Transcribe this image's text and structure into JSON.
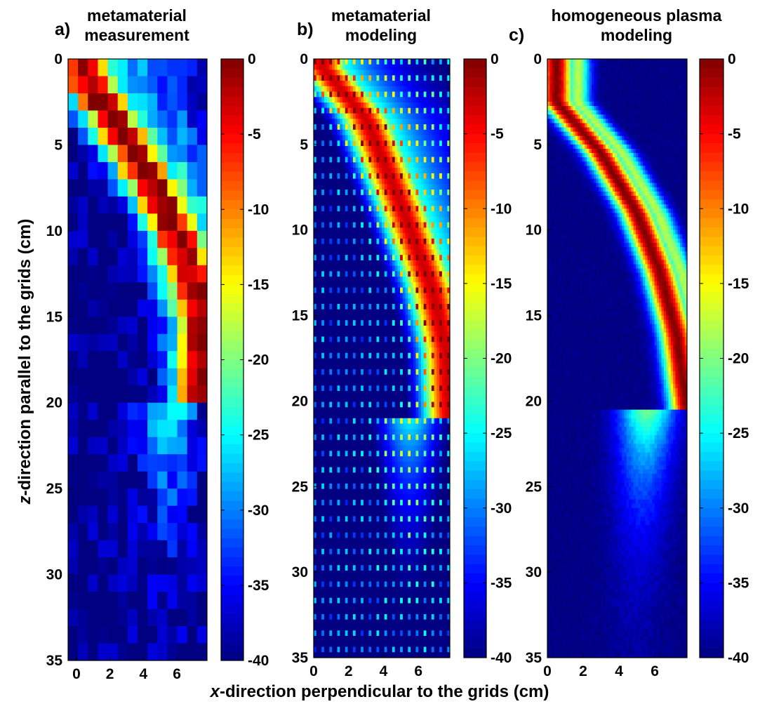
{
  "chart_data": [
    {
      "type": "heatmap",
      "panel": "a)",
      "title_lines": [
        "metamaterial",
        "measurement"
      ],
      "xlim": [
        -0.5,
        7.8
      ],
      "ylim": [
        35,
        0
      ],
      "xticks": [
        "0",
        "2",
        "4",
        "6"
      ],
      "yticks": [
        "0",
        "5",
        "10",
        "15",
        "20",
        "25",
        "30",
        "35"
      ],
      "colorbar": {
        "range": [
          -40,
          0
        ],
        "ticks": [
          "0",
          "-5",
          "-10",
          "-15",
          "-20",
          "-25",
          "-30",
          "-35",
          "-40"
        ],
        "colormap": "jet"
      },
      "beam_ridge": [
        [
          0.5,
          1.0
        ],
        [
          2.5,
          4.0
        ],
        [
          5.0,
          8.0
        ],
        [
          6.5,
          11.5
        ],
        [
          7.5,
          15.0
        ],
        [
          7.5,
          19.5
        ]
      ],
      "value_range": [
        -40,
        0
      ]
    },
    {
      "type": "heatmap",
      "panel": "b)",
      "title_lines": [
        "metamaterial",
        "modeling"
      ],
      "xlim": [
        0,
        7.8
      ],
      "ylim": [
        35,
        0
      ],
      "xticks": [
        "0",
        "2",
        "4",
        "6"
      ],
      "yticks": [
        "0",
        "5",
        "10",
        "15",
        "20",
        "25",
        "30",
        "35"
      ],
      "colorbar": {
        "range": [
          -40,
          0
        ],
        "ticks": [
          "0",
          "-5",
          "-10",
          "-15",
          "-20",
          "-25",
          "-30",
          "-35",
          "-40"
        ],
        "colormap": "jet"
      },
      "beam_ridge": [
        [
          0.5,
          0.5
        ],
        [
          3.0,
          3.5
        ],
        [
          5.0,
          8.5
        ],
        [
          6.8,
          13.5
        ],
        [
          7.6,
          17.0
        ],
        [
          7.8,
          21.0
        ]
      ],
      "value_range": [
        -40,
        0
      ]
    },
    {
      "type": "heatmap",
      "panel": "c)",
      "title_lines": [
        "homogeneous plasma",
        "modeling"
      ],
      "xlim": [
        0,
        7.8
      ],
      "ylim": [
        35,
        0
      ],
      "xticks": [
        "0",
        "2",
        "4",
        "6"
      ],
      "yticks": [
        "0",
        "5",
        "10",
        "15",
        "20",
        "25",
        "30",
        "35"
      ],
      "colorbar": {
        "range": [
          -40,
          0
        ],
        "ticks": [
          "0",
          "-5",
          "-10",
          "-15",
          "-20",
          "-25",
          "-30",
          "-35",
          "-40"
        ],
        "colormap": "jet"
      },
      "beam_ridge": [
        [
          0.5,
          2.5
        ],
        [
          3.0,
          5.5
        ],
        [
          5.0,
          9.0
        ],
        [
          6.3,
          12.5
        ],
        [
          7.2,
          16.0
        ],
        [
          7.8,
          20.5
        ]
      ],
      "value_range": [
        -40,
        0
      ]
    }
  ],
  "xlabel": {
    "italic": "x",
    "rest": "-direction perpendicular to the grids (cm)"
  },
  "ylabel": {
    "italic": "z",
    "rest": "-direction parallel to the grids (cm)"
  },
  "colors": {
    "text": "#000000",
    "background": "#ffffff",
    "frame": "#000000"
  }
}
